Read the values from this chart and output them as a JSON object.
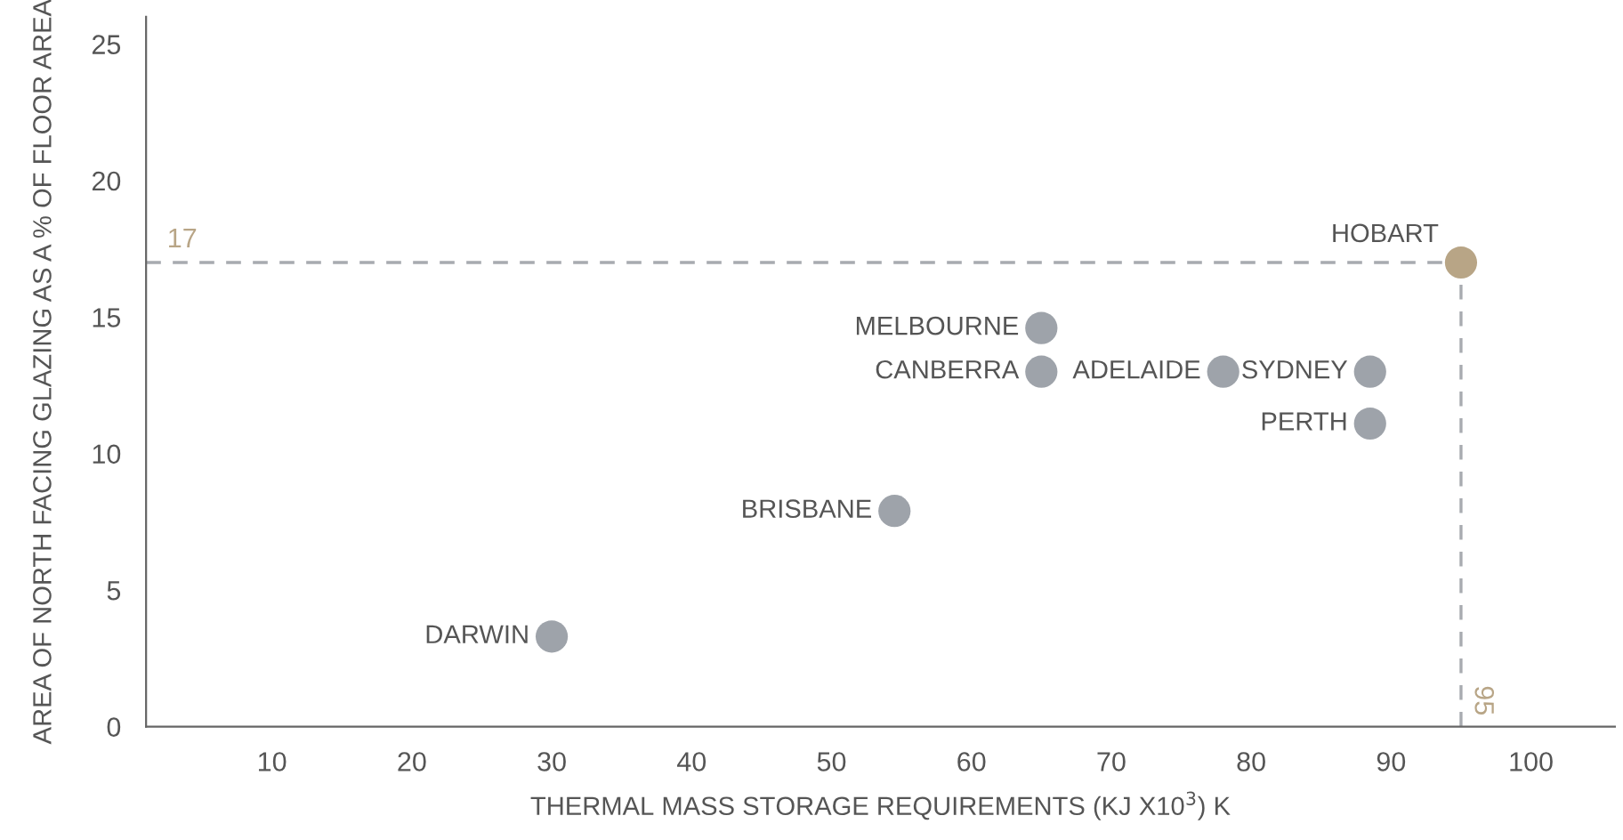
{
  "chart_data": {
    "type": "scatter",
    "xlabel": "THERMAL MASS STORAGE REQUIREMENTS (KJ X10$^{3}$) K",
    "ylabel": "AREA OF NORTH FACING GLAZING AS A % OF FLOOR AREA",
    "x": [
      30,
      54.5,
      65,
      65,
      78,
      88.5,
      88.5,
      95
    ],
    "values": [
      3.3,
      7.9,
      14.6,
      13,
      13,
      13,
      11.1,
      17
    ],
    "colors": [
      "#9ea3aa",
      "#9ea3aa",
      "#9ea3aa",
      "#9ea3aa",
      "#9ea3aa",
      "#9ea3aa",
      "#9ea3aa",
      "#b8a586"
    ],
    "marker": "circle",
    "grid": false,
    "legend": false,
    "xlim": [
      1,
      106
    ],
    "ylim": [
      0,
      26
    ],
    "xticks": [
      10,
      20,
      30,
      40,
      50,
      60,
      70,
      80,
      90,
      100
    ],
    "yticks": [
      0,
      5,
      10,
      15,
      20,
      25
    ],
    "ref_lines": [
      {
        "axis": "y",
        "value": 17,
        "label": "17",
        "color": "#a8abb0",
        "line_style": "dashed"
      },
      {
        "axis": "x",
        "value": 95,
        "label": "95",
        "color": "#a8abb0",
        "line_style": "dashed"
      }
    ],
    "annotations": [
      {
        "text": "DARWIN",
        "x": 30,
        "y": 3.3
      },
      {
        "text": "BRISBANE",
        "x": 54.5,
        "y": 7.9
      },
      {
        "text": "MELBOURNE",
        "x": 65,
        "y": 14.6
      },
      {
        "text": "CANBERRA",
        "x": 65,
        "y": 13
      },
      {
        "text": "ADELAIDE",
        "x": 78,
        "y": 13
      },
      {
        "text": "SYDNEY",
        "x": 88.5,
        "y": 13
      },
      {
        "text": "PERTH",
        "x": 88.5,
        "y": 11.1
      },
      {
        "text": "HOBART",
        "x": 95,
        "y": 17
      }
    ]
  }
}
